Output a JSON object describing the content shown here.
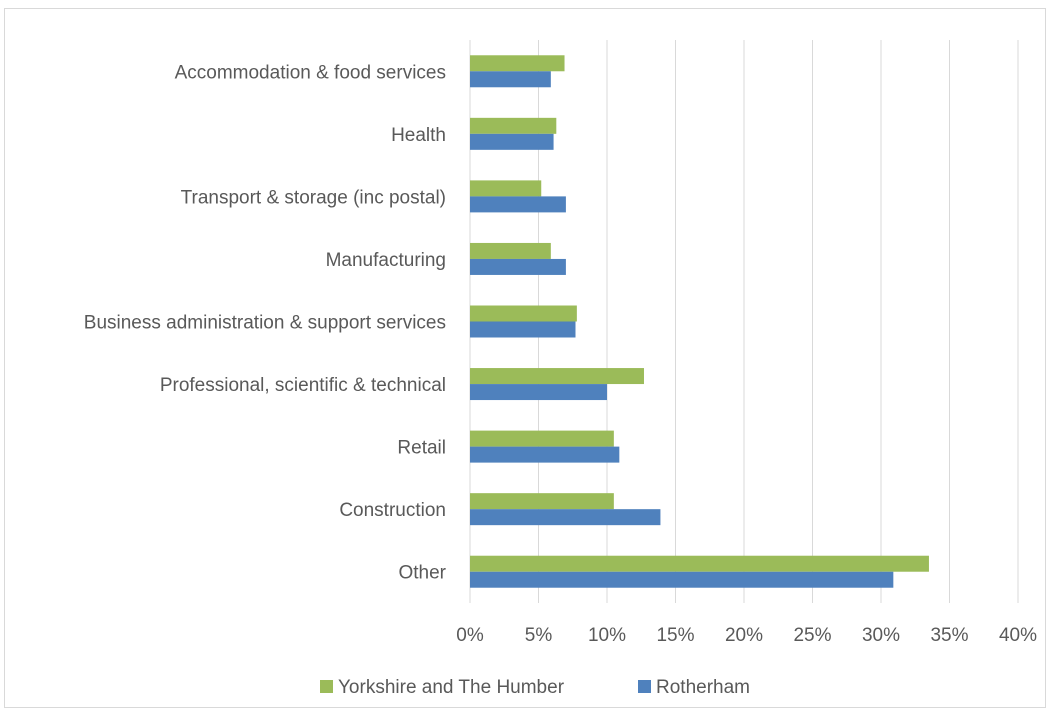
{
  "chart_data": {
    "type": "bar",
    "orientation": "horizontal",
    "categories": [
      "Accommodation & food services",
      "Health",
      "Transport & storage (inc postal)",
      "Manufacturing",
      "Business administration & support services",
      "Professional, scientific & technical",
      "Retail",
      "Construction",
      "Other"
    ],
    "series": [
      {
        "name": "Yorkshire and The Humber",
        "color": "#9bbb59",
        "values": [
          0.069,
          0.063,
          0.052,
          0.059,
          0.078,
          0.127,
          0.105,
          0.105,
          0.335
        ]
      },
      {
        "name": "Rotherham",
        "color": "#4f81bd",
        "values": [
          0.059,
          0.061,
          0.07,
          0.07,
          0.077,
          0.1,
          0.109,
          0.139,
          0.309
        ]
      }
    ],
    "xlim": [
      0,
      0.4
    ],
    "x_ticks": [
      0,
      0.05,
      0.1,
      0.15,
      0.2,
      0.25,
      0.3,
      0.35,
      0.4
    ],
    "x_tick_labels": [
      "0%",
      "5%",
      "10%",
      "15%",
      "20%",
      "25%",
      "30%",
      "35%",
      "40%"
    ],
    "grid": "vertical",
    "legend_position": "bottom",
    "title": "",
    "xlabel": "",
    "ylabel": ""
  }
}
